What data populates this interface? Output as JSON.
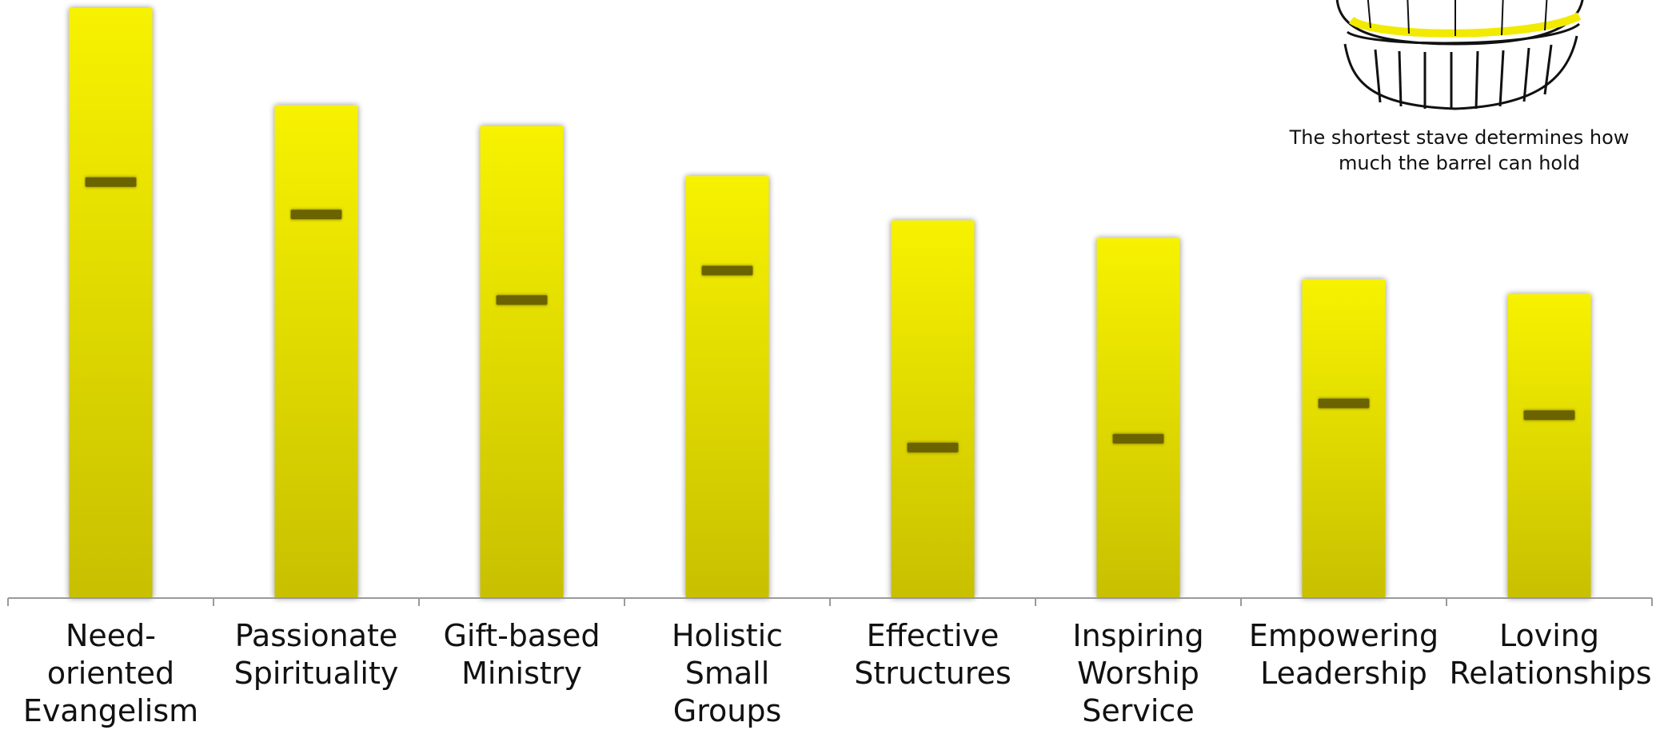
{
  "chart_data": {
    "type": "bar",
    "categories": [
      "Need-oriented\nEvangelism",
      "Passionate\nSpirituality",
      "Gift-based\nMinistry",
      "Holistic Small\nGroups",
      "Effective\nStructures",
      "Inspiring\nWorship\nService",
      "Empowering\nLeadership",
      "Loving\nRelationships"
    ],
    "values": [
      100,
      83.5,
      80,
      71.5,
      64,
      61,
      54,
      51.5
    ],
    "markers": [
      70.5,
      65,
      50.5,
      55.5,
      25.5,
      27,
      33,
      31
    ],
    "ylim": [
      0,
      100
    ],
    "bar_color": "#f7f200",
    "bar_color_bottom": "#c8c000",
    "marker_color": "#6b6300"
  },
  "annotation": {
    "text": "The shortest stave determines how much the barrel can hold"
  },
  "icons": {
    "barrel": "barrel-illustration"
  }
}
